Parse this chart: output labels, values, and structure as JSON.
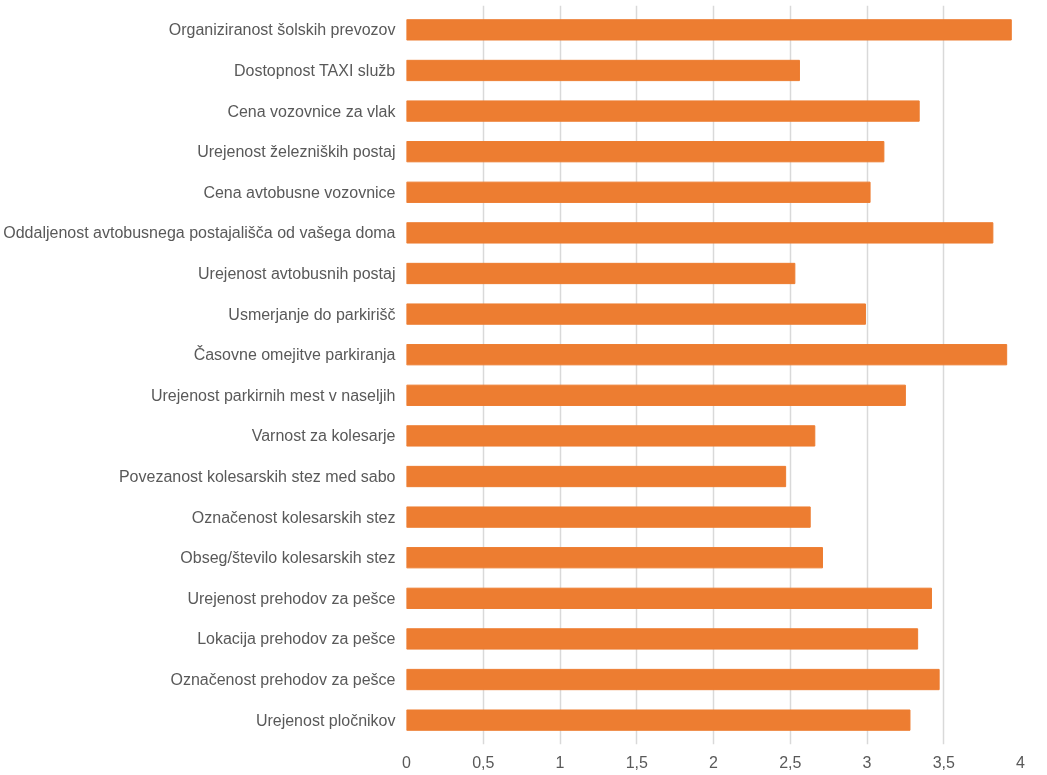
{
  "chart_data": {
    "type": "bar",
    "orientation": "horizontal",
    "categories": [
      "Organiziranost šolskih prevozov",
      "Dostopnost TAXI služb",
      "Cena vozovnice za vlak",
      "Urejenost železniških postaj",
      "Cena avtobusne vozovnice",
      "Oddaljenost avtobusnega postajališča od vašega doma",
      "Urejenost avtobusnih postaj",
      "Usmerjanje do parkirišč",
      "Časovne omejitve parkiranja",
      "Urejenost parkirnih mest v naseljih",
      "Varnost za kolesarje",
      "Povezanost kolesarskih stez med sabo",
      "Označenost kolesarskih stez",
      "Obseg/število kolesarskih stez",
      "Urejenost prehodov za pešce",
      "Lokacija prehodov za pešce",
      "Označenost prehodov za pešce",
      "Urejenost pločnikov"
    ],
    "values": [
      3.94,
      2.56,
      3.34,
      3.11,
      3.02,
      3.82,
      2.53,
      2.99,
      3.91,
      3.25,
      2.66,
      2.47,
      2.63,
      2.71,
      3.42,
      3.33,
      3.47,
      3.28
    ],
    "color": "#ed7d31",
    "xlim": [
      0,
      4
    ],
    "xticks": [
      0,
      {
        "value": 0.5,
        "label": "0,5"
      },
      1,
      {
        "value": 1.5,
        "label": "1,5"
      },
      2,
      {
        "value": 2.5,
        "label": "2,5"
      },
      3,
      {
        "value": 3.5,
        "label": "3,5"
      },
      4
    ],
    "grid": "x"
  }
}
